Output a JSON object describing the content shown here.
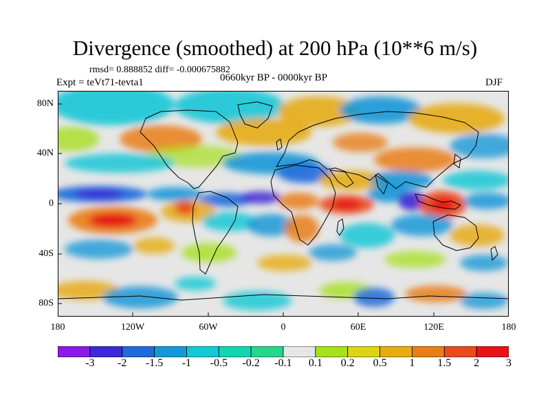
{
  "title": "Divergence (smoothed) at 200 hPa (10**6 m/s)",
  "stats": "rmsd= 0.888852 diff= -0.000675882",
  "expt": "Expt = teVt71-tevta1",
  "period": "0660kyr BP - 0000kyr BP",
  "season": "DJF",
  "lat_labels": [
    "80N",
    "40N",
    "0",
    "40S",
    "80S"
  ],
  "lon_labels": [
    "180",
    "120W",
    "60W",
    "0",
    "60E",
    "120E",
    "180"
  ],
  "colorbar": {
    "labels": [
      "-3",
      "-2",
      "-1.5",
      "-1",
      "-0.5",
      "-0.2",
      "-0.1",
      "0.1",
      "0.2",
      "0.5",
      "1",
      "1.5",
      "2",
      "3"
    ],
    "colors": [
      "#8c1ae6",
      "#3c2ad6",
      "#1f6bdc",
      "#1698d8",
      "#14c8d6",
      "#10d6b0",
      "#26d68a",
      "#e6e6e6",
      "#a6e01e",
      "#dcd414",
      "#e6ac14",
      "#ea7e18",
      "#ea4a1c",
      "#e61414"
    ]
  },
  "legend_markers": {
    "neg_strong": "#3c2ad6",
    "neg_mid": "#1698d8",
    "neg_weak": "#14c8d6",
    "neutral": "#e6e6e6",
    "pos_weak": "#a6e01e",
    "pos_mid": "#e6ac14",
    "pos_strong": "#e61414"
  }
}
